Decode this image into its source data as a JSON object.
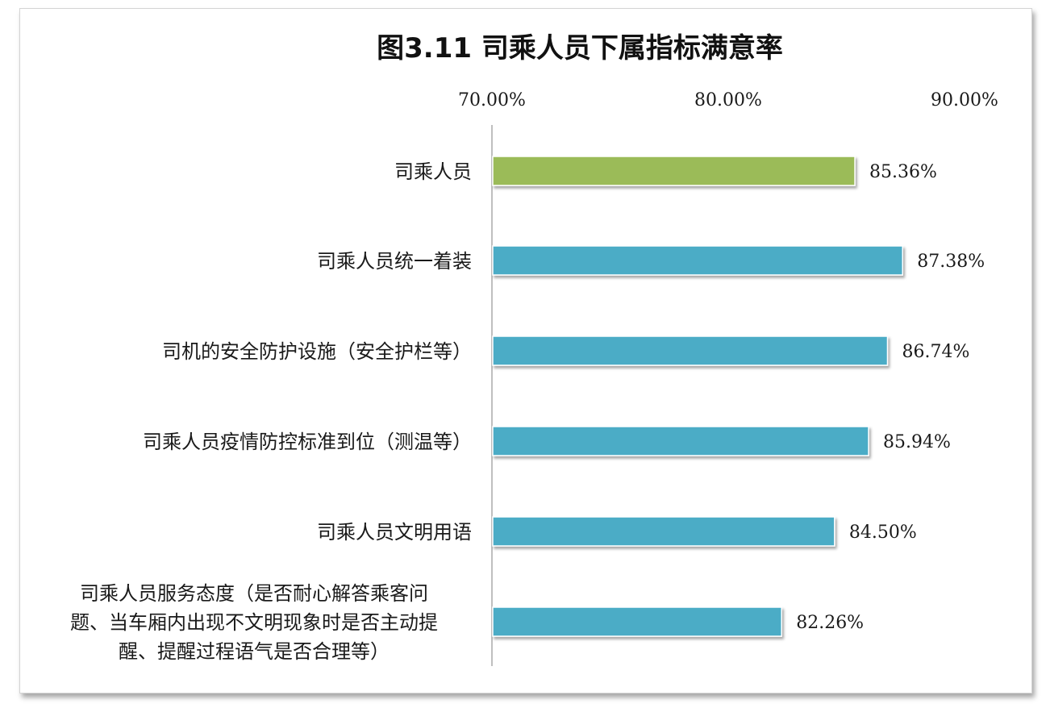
{
  "chart_data": {
    "type": "bar",
    "orientation": "horizontal",
    "title": "图3.11 司乘人员下属指标满意率",
    "x_ticks": [
      "70.00%",
      "80.00%",
      "90.00%"
    ],
    "xlim": [
      70,
      90
    ],
    "categories": [
      [
        "司乘人员"
      ],
      [
        "司乘人员统一着装"
      ],
      [
        "司机的安全防护设施（安全护栏等）"
      ],
      [
        "司乘人员疫情防控标准到位（测温等）"
      ],
      [
        "司乘人员文明用语"
      ],
      [
        "司乘人员服务态度（是否耐心解答乘客问",
        "题、当车厢内出现不文明现象时是否主动提",
        "醒、提醒过程语气是否合理等）"
      ]
    ],
    "values": [
      85.36,
      87.38,
      86.74,
      85.94,
      84.5,
      82.26
    ],
    "value_labels": [
      "85.36%",
      "87.38%",
      "86.74%",
      "85.94%",
      "84.50%",
      "82.26%"
    ],
    "colors": [
      "#9bbb59",
      "#4bacc6",
      "#4bacc6",
      "#4bacc6",
      "#4bacc6",
      "#4bacc6"
    ],
    "grid": false,
    "legend": "none"
  }
}
